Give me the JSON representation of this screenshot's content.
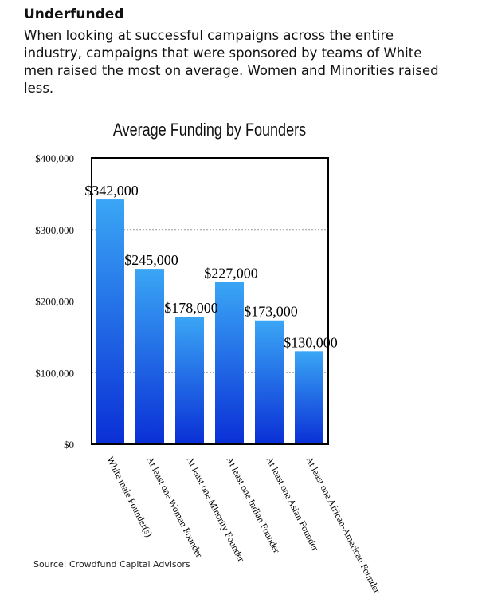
{
  "header": {
    "title": "Underfunded",
    "description": "When looking at successful campaigns across the entire industry, campaigns that were sponsored by teams of White men raised the most on average. Women and Minorities raised less."
  },
  "source": "Source: Crowdfund Capital Advisors",
  "colors": {
    "bar_top": "#3aa6f5",
    "bar_bottom": "#0a2fd6",
    "frame": "#000000",
    "grid": "#9a9a9a"
  },
  "chart_data": {
    "type": "bar",
    "title": "Average Funding by Founders",
    "xlabel": "",
    "ylabel": "",
    "categories": [
      "White male Founder(s)",
      "At least one Woman Founder",
      "At least one Minority Founder",
      "At least one Indian Founder",
      "At least one Asian Founder",
      "At least one African-American Founder"
    ],
    "values": [
      342000,
      245000,
      178000,
      227000,
      173000,
      130000
    ],
    "data_labels": [
      "$342,000",
      "$245,000",
      "$178,000",
      "$227,000",
      "$173,000",
      "$130,000"
    ],
    "ylim": [
      0,
      400000
    ],
    "yticks": [
      0,
      100000,
      200000,
      300000,
      400000
    ],
    "ytick_labels": [
      "$0",
      "$100,000",
      "$200,000",
      "$300,000",
      "$400,000"
    ],
    "grid": "horizontal dotted",
    "legend": "none"
  }
}
